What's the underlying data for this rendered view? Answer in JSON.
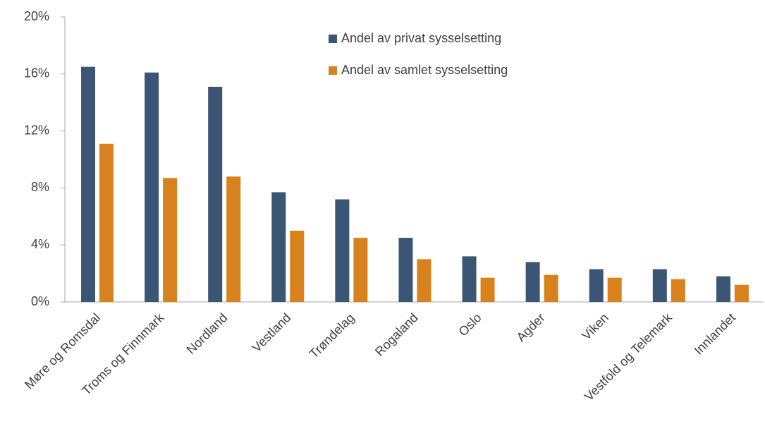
{
  "chart_data": {
    "type": "bar",
    "categories": [
      "Møre og Romsdal",
      "Troms og Finnmark",
      "Nordland",
      "Vestland",
      "Trøndelag",
      "Rogaland",
      "Oslo",
      "Agder",
      "Viken",
      "Vestfold og Telemark",
      "Innlandet"
    ],
    "series": [
      {
        "name": "Andel av privat sysselsetting",
        "color": "#3b5675",
        "values": [
          16.5,
          16.1,
          15.1,
          7.7,
          7.2,
          4.5,
          3.2,
          2.8,
          2.3,
          2.3,
          1.8
        ]
      },
      {
        "name": "Andel av samlet sysselsetting",
        "color": "#d8821d",
        "values": [
          11.1,
          8.7,
          8.8,
          5.0,
          4.5,
          3.0,
          1.7,
          1.9,
          1.7,
          1.6,
          1.2
        ]
      }
    ],
    "ylim": [
      0,
      20
    ],
    "yticks": [
      {
        "value": 0,
        "label": "0%"
      },
      {
        "value": 4,
        "label": "4%"
      },
      {
        "value": 8,
        "label": "8%"
      },
      {
        "value": 12,
        "label": "12%"
      },
      {
        "value": 16,
        "label": "16%"
      },
      {
        "value": 20,
        "label": "20%"
      }
    ],
    "legend": "top-center"
  }
}
